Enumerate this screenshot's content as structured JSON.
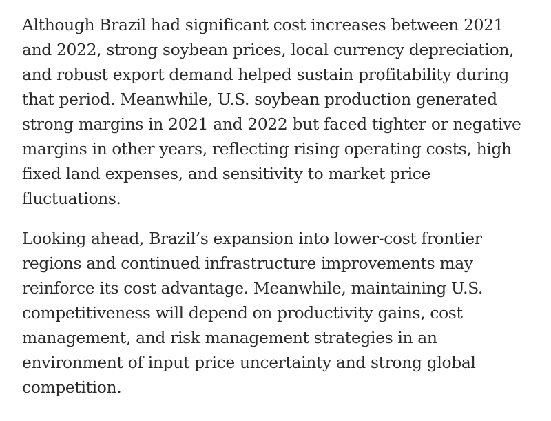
{
  "article": {
    "paragraphs": [
      "Although Brazil had significant cost increases between 2021 and 2022, strong soybean prices, local currency depreciation, and robust export demand helped sustain profitability during that period. Meanwhile, U.S. soybean production generated strong margins in 2021 and 2022 but faced tighter or negative margins in other years, reflecting rising operating costs, high fixed land expenses, and sensitivity to market price fluctuations.",
      "Looking ahead, Brazil’s expansion into lower-cost frontier regions and continued infrastructure improvements may reinforce its cost advantage. Meanwhile, maintaining U.S. competitiveness will depend on productivity gains, cost management, and risk management strategies in an environment of input price uncertainty and strong global competition."
    ]
  }
}
